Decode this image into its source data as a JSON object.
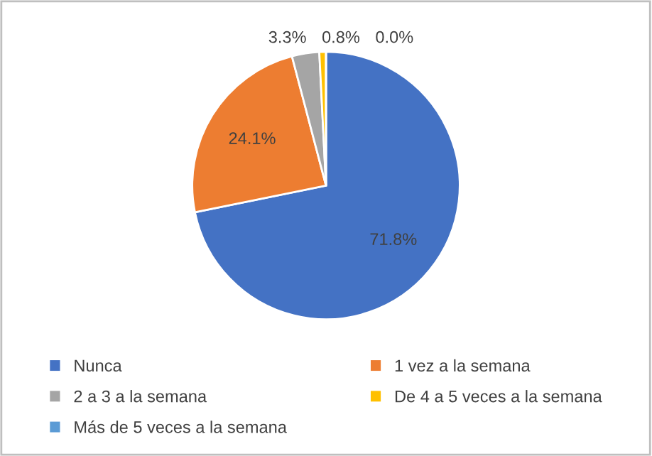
{
  "chart_data": {
    "type": "pie",
    "categories": [
      "Nunca",
      "1 vez a la semana",
      "2 a 3 a la semana",
      "De 4 a 5 veces a la semana",
      "Más de 5 veces a la semana"
    ],
    "values": [
      71.8,
      24.1,
      3.3,
      0.8,
      0.0
    ],
    "colors": [
      "#4472c4",
      "#ed7d31",
      "#a5a5a5",
      "#ffc000",
      "#5b9bd5"
    ],
    "value_labels": [
      "71.8%",
      "24.1%",
      "3.3%",
      "0.8%",
      "0.0%"
    ],
    "legend": "bottom"
  }
}
